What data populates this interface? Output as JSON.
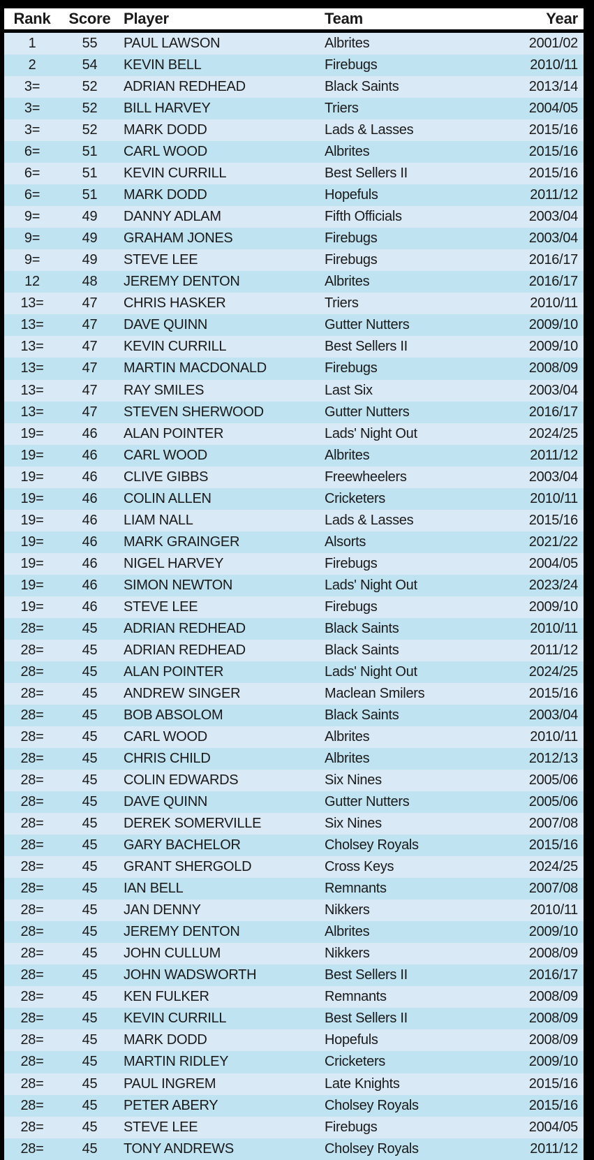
{
  "colors": {
    "frame": "#000000",
    "header_bg": "#ffffff",
    "row_light": "#d9e9f6",
    "row_dark": "#c0e3f2",
    "text": "#1a1a1a"
  },
  "table": {
    "columns": [
      {
        "label": "Rank"
      },
      {
        "label": "Score"
      },
      {
        "label": "Player"
      },
      {
        "label": "Team"
      },
      {
        "label": "Year"
      }
    ],
    "rows": [
      {
        "rank": "1",
        "score": "55",
        "player": "PAUL LAWSON",
        "team": "Albrites",
        "year": "2001/02"
      },
      {
        "rank": "2",
        "score": "54",
        "player": "KEVIN BELL",
        "team": "Firebugs",
        "year": "2010/11"
      },
      {
        "rank": "3=",
        "score": "52",
        "player": "ADRIAN REDHEAD",
        "team": "Black Saints",
        "year": "2013/14"
      },
      {
        "rank": "3=",
        "score": "52",
        "player": "BILL HARVEY",
        "team": "Triers",
        "year": "2004/05"
      },
      {
        "rank": "3=",
        "score": "52",
        "player": "MARK DODD",
        "team": "Lads & Lasses",
        "year": "2015/16"
      },
      {
        "rank": "6=",
        "score": "51",
        "player": "CARL WOOD",
        "team": "Albrites",
        "year": "2015/16"
      },
      {
        "rank": "6=",
        "score": "51",
        "player": "KEVIN CURRILL",
        "team": "Best Sellers II",
        "year": "2015/16"
      },
      {
        "rank": "6=",
        "score": "51",
        "player": "MARK DODD",
        "team": "Hopefuls",
        "year": "2011/12"
      },
      {
        "rank": "9=",
        "score": "49",
        "player": "DANNY ADLAM",
        "team": "Fifth Officials",
        "year": "2003/04"
      },
      {
        "rank": "9=",
        "score": "49",
        "player": "GRAHAM JONES",
        "team": "Firebugs",
        "year": "2003/04"
      },
      {
        "rank": "9=",
        "score": "49",
        "player": "STEVE LEE",
        "team": "Firebugs",
        "year": "2016/17"
      },
      {
        "rank": "12",
        "score": "48",
        "player": "JEREMY DENTON",
        "team": "Albrites",
        "year": "2016/17"
      },
      {
        "rank": "13=",
        "score": "47",
        "player": "CHRIS HASKER",
        "team": "Triers",
        "year": "2010/11"
      },
      {
        "rank": "13=",
        "score": "47",
        "player": "DAVE QUINN",
        "team": "Gutter Nutters",
        "year": "2009/10"
      },
      {
        "rank": "13=",
        "score": "47",
        "player": "KEVIN CURRILL",
        "team": "Best Sellers II",
        "year": "2009/10"
      },
      {
        "rank": "13=",
        "score": "47",
        "player": "MARTIN MACDONALD",
        "team": "Firebugs",
        "year": "2008/09"
      },
      {
        "rank": "13=",
        "score": "47",
        "player": "RAY SMILES",
        "team": "Last Six",
        "year": "2003/04"
      },
      {
        "rank": "13=",
        "score": "47",
        "player": "STEVEN SHERWOOD",
        "team": "Gutter Nutters",
        "year": "2016/17"
      },
      {
        "rank": "19=",
        "score": "46",
        "player": "ALAN POINTER",
        "team": "Lads' Night Out",
        "year": "2024/25"
      },
      {
        "rank": "19=",
        "score": "46",
        "player": "CARL WOOD",
        "team": "Albrites",
        "year": "2011/12"
      },
      {
        "rank": "19=",
        "score": "46",
        "player": "CLIVE GIBBS",
        "team": "Freewheelers",
        "year": "2003/04"
      },
      {
        "rank": "19=",
        "score": "46",
        "player": "COLIN ALLEN",
        "team": "Cricketers",
        "year": "2010/11"
      },
      {
        "rank": "19=",
        "score": "46",
        "player": "LIAM NALL",
        "team": "Lads & Lasses",
        "year": "2015/16"
      },
      {
        "rank": "19=",
        "score": "46",
        "player": "MARK GRAINGER",
        "team": "Alsorts",
        "year": "2021/22"
      },
      {
        "rank": "19=",
        "score": "46",
        "player": "NIGEL HARVEY",
        "team": "Firebugs",
        "year": "2004/05"
      },
      {
        "rank": "19=",
        "score": "46",
        "player": "SIMON NEWTON",
        "team": "Lads' Night Out",
        "year": "2023/24"
      },
      {
        "rank": "19=",
        "score": "46",
        "player": "STEVE LEE",
        "team": "Firebugs",
        "year": "2009/10"
      },
      {
        "rank": "28=",
        "score": "45",
        "player": "ADRIAN REDHEAD",
        "team": "Black Saints",
        "year": "2010/11"
      },
      {
        "rank": "28=",
        "score": "45",
        "player": "ADRIAN REDHEAD",
        "team": "Black Saints",
        "year": "2011/12"
      },
      {
        "rank": "28=",
        "score": "45",
        "player": "ALAN POINTER",
        "team": "Lads' Night Out",
        "year": "2024/25"
      },
      {
        "rank": "28=",
        "score": "45",
        "player": "ANDREW SINGER",
        "team": "Maclean Smilers",
        "year": "2015/16"
      },
      {
        "rank": "28=",
        "score": "45",
        "player": "BOB ABSOLOM",
        "team": "Black Saints",
        "year": "2003/04"
      },
      {
        "rank": "28=",
        "score": "45",
        "player": "CARL WOOD",
        "team": "Albrites",
        "year": "2010/11"
      },
      {
        "rank": "28=",
        "score": "45",
        "player": "CHRIS CHILD",
        "team": "Albrites",
        "year": "2012/13"
      },
      {
        "rank": "28=",
        "score": "45",
        "player": "COLIN EDWARDS",
        "team": "Six Nines",
        "year": "2005/06"
      },
      {
        "rank": "28=",
        "score": "45",
        "player": "DAVE QUINN",
        "team": "Gutter Nutters",
        "year": "2005/06"
      },
      {
        "rank": "28=",
        "score": "45",
        "player": "DEREK SOMERVILLE",
        "team": "Six Nines",
        "year": "2007/08"
      },
      {
        "rank": "28=",
        "score": "45",
        "player": "GARY BACHELOR",
        "team": "Cholsey Royals",
        "year": "2015/16"
      },
      {
        "rank": "28=",
        "score": "45",
        "player": "GRANT SHERGOLD",
        "team": "Cross Keys",
        "year": "2024/25"
      },
      {
        "rank": "28=",
        "score": "45",
        "player": "IAN BELL",
        "team": "Remnants",
        "year": "2007/08"
      },
      {
        "rank": "28=",
        "score": "45",
        "player": "JAN DENNY",
        "team": "Nikkers",
        "year": "2010/11"
      },
      {
        "rank": "28=",
        "score": "45",
        "player": "JEREMY DENTON",
        "team": "Albrites",
        "year": "2009/10"
      },
      {
        "rank": "28=",
        "score": "45",
        "player": "JOHN CULLUM",
        "team": "Nikkers",
        "year": "2008/09"
      },
      {
        "rank": "28=",
        "score": "45",
        "player": "JOHN WADSWORTH",
        "team": "Best Sellers II",
        "year": "2016/17"
      },
      {
        "rank": "28=",
        "score": "45",
        "player": "KEN FULKER",
        "team": "Remnants",
        "year": "2008/09"
      },
      {
        "rank": "28=",
        "score": "45",
        "player": "KEVIN CURRILL",
        "team": "Best Sellers II",
        "year": "2008/09"
      },
      {
        "rank": "28=",
        "score": "45",
        "player": "MARK DODD",
        "team": "Hopefuls",
        "year": "2008/09"
      },
      {
        "rank": "28=",
        "score": "45",
        "player": "MARTIN RIDLEY",
        "team": "Cricketers",
        "year": "2009/10"
      },
      {
        "rank": "28=",
        "score": "45",
        "player": "PAUL INGREM",
        "team": "Late Knights",
        "year": "2015/16"
      },
      {
        "rank": "28=",
        "score": "45",
        "player": "PETER ABERY",
        "team": "Cholsey Royals",
        "year": "2015/16"
      },
      {
        "rank": "28=",
        "score": "45",
        "player": "STEVE LEE",
        "team": "Firebugs",
        "year": "2004/05"
      },
      {
        "rank": "28=",
        "score": "45",
        "player": "TONY ANDREWS",
        "team": "Cholsey Royals",
        "year": "2011/12"
      }
    ]
  }
}
